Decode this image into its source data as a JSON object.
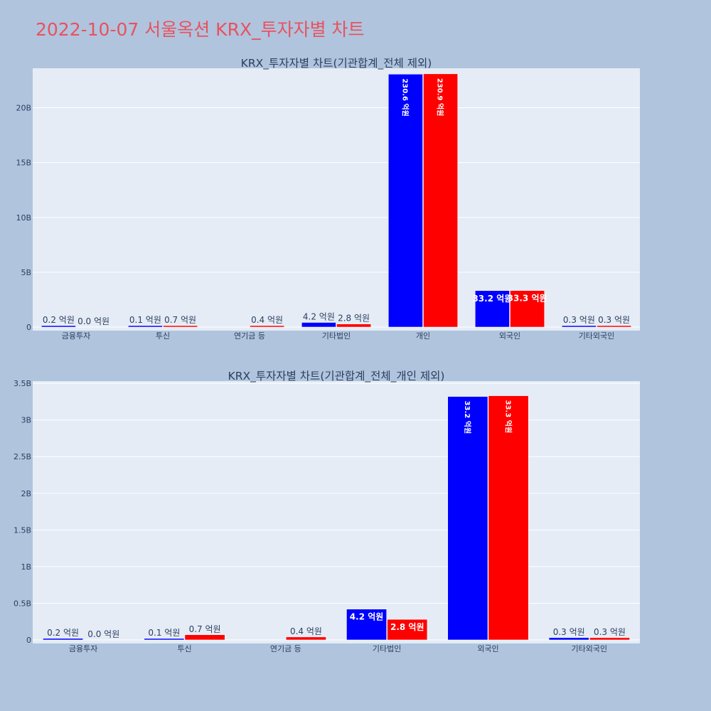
{
  "page": {
    "title": "2022-10-07 서울옥션 KRX_투자자별 차트"
  },
  "colors": {
    "background": "#b0c4de",
    "plot_background": "#e5ecf6",
    "title": "#e8525e",
    "series_a": "#0000ff",
    "series_b": "#ff0000",
    "text": "#2a3f5f",
    "grid": "#ffffff"
  },
  "chart_data": [
    {
      "type": "bar",
      "title": "KRX_투자자별 차트(기관합계_전체 제외)",
      "categories": [
        "금융투자",
        "투신",
        "연기금 등",
        "기타법인",
        "개인",
        "외국인",
        "기타외국인"
      ],
      "series": [
        {
          "values": [
            20000000,
            10000000,
            0,
            420000000,
            23060000000,
            3320000000,
            30000000
          ],
          "labels": [
            "0.2 억원",
            "0.1 억원",
            "",
            "4.2 억원",
            "230.6 억원",
            "33.2 억원",
            "0.3 억원"
          ]
        },
        {
          "values": [
            0,
            70000000,
            40000000,
            280000000,
            23090000000,
            3330000000,
            30000000
          ],
          "labels": [
            "0.0 억원",
            "0.7 억원",
            "0.4 억원",
            "2.8 억원",
            "230.9 억원",
            "33.3 억원",
            "0.3 억원"
          ]
        }
      ],
      "ylim": [
        0,
        23600000000
      ],
      "yticks": [
        0,
        5000000000,
        10000000000,
        15000000000,
        20000000000
      ],
      "ytick_labels": [
        "0",
        "5B",
        "10B",
        "15B",
        "20B"
      ],
      "xlabel": "",
      "ylabel": "",
      "grid": true,
      "legend": "none"
    },
    {
      "type": "bar",
      "title": "KRX_투자자별 차트(기관합계_전체_개인 제외)",
      "categories": [
        "금융투자",
        "투신",
        "연기금 등",
        "기타법인",
        "외국인",
        "기타외국인"
      ],
      "series": [
        {
          "values": [
            20000000,
            10000000,
            0,
            420000000,
            3320000000,
            30000000
          ],
          "labels": [
            "0.2 억원",
            "0.1 억원",
            "",
            "4.2 억원",
            "33.2 억원",
            "0.3 억원"
          ]
        },
        {
          "values": [
            0,
            70000000,
            40000000,
            280000000,
            3330000000,
            30000000
          ],
          "labels": [
            "0.0 억원",
            "0.7 억원",
            "0.4 억원",
            "2.8 억원",
            "33.3 억원",
            "0.3 억원"
          ]
        }
      ],
      "ylim": [
        0,
        3530000000
      ],
      "yticks": [
        0,
        500000000,
        1000000000,
        1500000000,
        2000000000,
        2500000000,
        3000000000,
        3500000000
      ],
      "ytick_labels": [
        "0",
        "0.5B",
        "1B",
        "1.5B",
        "2B",
        "2.5B",
        "3B",
        "3.5B"
      ],
      "xlabel": "",
      "ylabel": "",
      "grid": true,
      "legend": "none"
    }
  ]
}
